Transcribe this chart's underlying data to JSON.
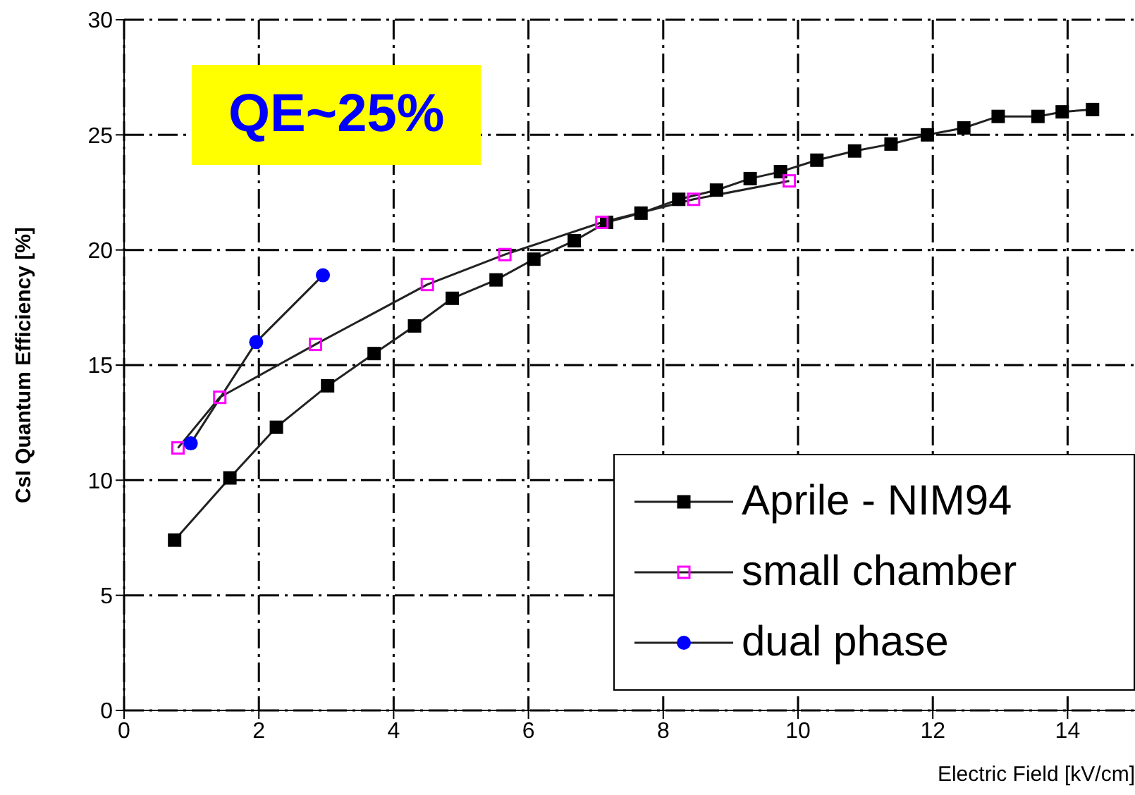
{
  "chart_data": {
    "type": "line",
    "xlabel": "Electric Field [kV/cm]",
    "ylabel": "CsI Quantum Efficiency [%]",
    "annotations": [
      "QE~25%"
    ],
    "xlim": [
      0,
      15
    ],
    "xticks": [
      0,
      2,
      4,
      6,
      8,
      10,
      12,
      14
    ],
    "ylim": [
      0,
      30
    ],
    "yticks": [
      0,
      5,
      10,
      15,
      20,
      25,
      30
    ],
    "grid": true,
    "legend": "bottom right",
    "series": [
      {
        "name": "Aprile - NIM94",
        "color": "#000000",
        "marker": "square",
        "x": [
          0.75,
          1.57,
          2.26,
          3.02,
          3.71,
          4.31,
          4.87,
          5.52,
          6.08,
          6.68,
          7.16,
          7.67,
          8.23,
          8.79,
          9.29,
          9.74,
          10.28,
          10.84,
          11.38,
          11.92,
          12.46,
          12.97,
          13.56,
          13.92,
          14.37
        ],
        "values": [
          7.4,
          10.1,
          12.3,
          14.1,
          15.5,
          16.7,
          17.9,
          18.7,
          19.6,
          20.4,
          21.2,
          21.6,
          22.2,
          22.6,
          23.1,
          23.4,
          23.9,
          24.3,
          24.6,
          25.0,
          25.3,
          25.8,
          25.8,
          26.0,
          26.1
        ]
      },
      {
        "name": "small chamber",
        "color": "#ff00ff",
        "marker": "square",
        "x": [
          0.8,
          1.42,
          2.84,
          4.5,
          5.65,
          7.09,
          8.45,
          9.87
        ],
        "values": [
          11.4,
          13.6,
          15.9,
          18.5,
          19.8,
          21.2,
          22.2,
          23.0
        ]
      },
      {
        "name": "dual phase",
        "color": "#0000ff",
        "marker": "circle",
        "x": [
          0.99,
          1.96,
          2.95
        ],
        "values": [
          11.6,
          16.0,
          18.9
        ]
      }
    ]
  }
}
